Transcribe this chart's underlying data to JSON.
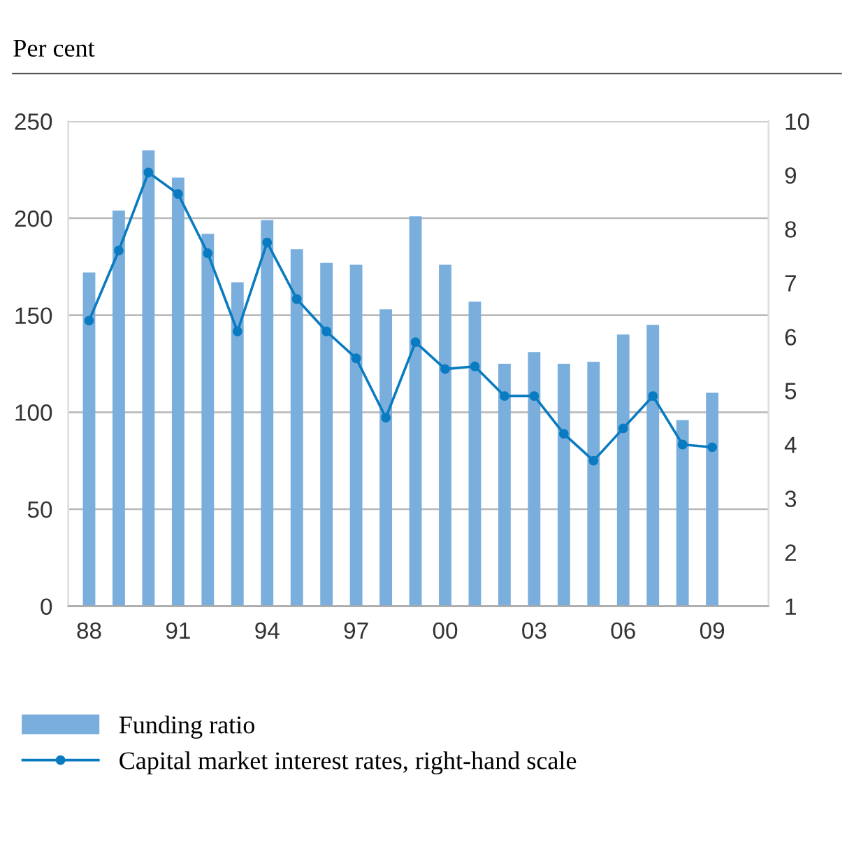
{
  "chart_data": {
    "type": "bar",
    "ylabel": "Per cent",
    "categories": [
      "88",
      null,
      null,
      "91",
      null,
      null,
      "94",
      null,
      null,
      "97",
      null,
      null,
      "00",
      null,
      null,
      "03",
      null,
      null,
      "06",
      null,
      null,
      "09"
    ],
    "series": [
      {
        "name": "Funding ratio",
        "color": "#7aaedc",
        "values": [
          172,
          204,
          235,
          221,
          192,
          167,
          199,
          184,
          177,
          176,
          153,
          201,
          176,
          157,
          125,
          131,
          125,
          126,
          140,
          145,
          96,
          110
        ]
      },
      {
        "name": "Capital market interest rates, right-hand scale",
        "type": "line",
        "axis": "y2",
        "color": "#0a7bc0",
        "marker": "circle",
        "values": [
          6.3,
          7.6,
          9.05,
          8.65,
          7.55,
          6.1,
          7.75,
          6.7,
          6.1,
          5.6,
          4.5,
          5.9,
          5.4,
          5.45,
          4.9,
          4.9,
          4.2,
          3.7,
          4.3,
          4.9,
          4.0,
          3.95
        ]
      }
    ],
    "ylim": [
      0,
      250
    ],
    "yticks": [
      0,
      50,
      100,
      150,
      200,
      250
    ],
    "y2lim": [
      1,
      10
    ],
    "y2ticks": [
      1,
      2,
      3,
      4,
      5,
      6,
      7,
      8,
      9,
      10
    ],
    "grid": "y",
    "legend": "bottom"
  }
}
